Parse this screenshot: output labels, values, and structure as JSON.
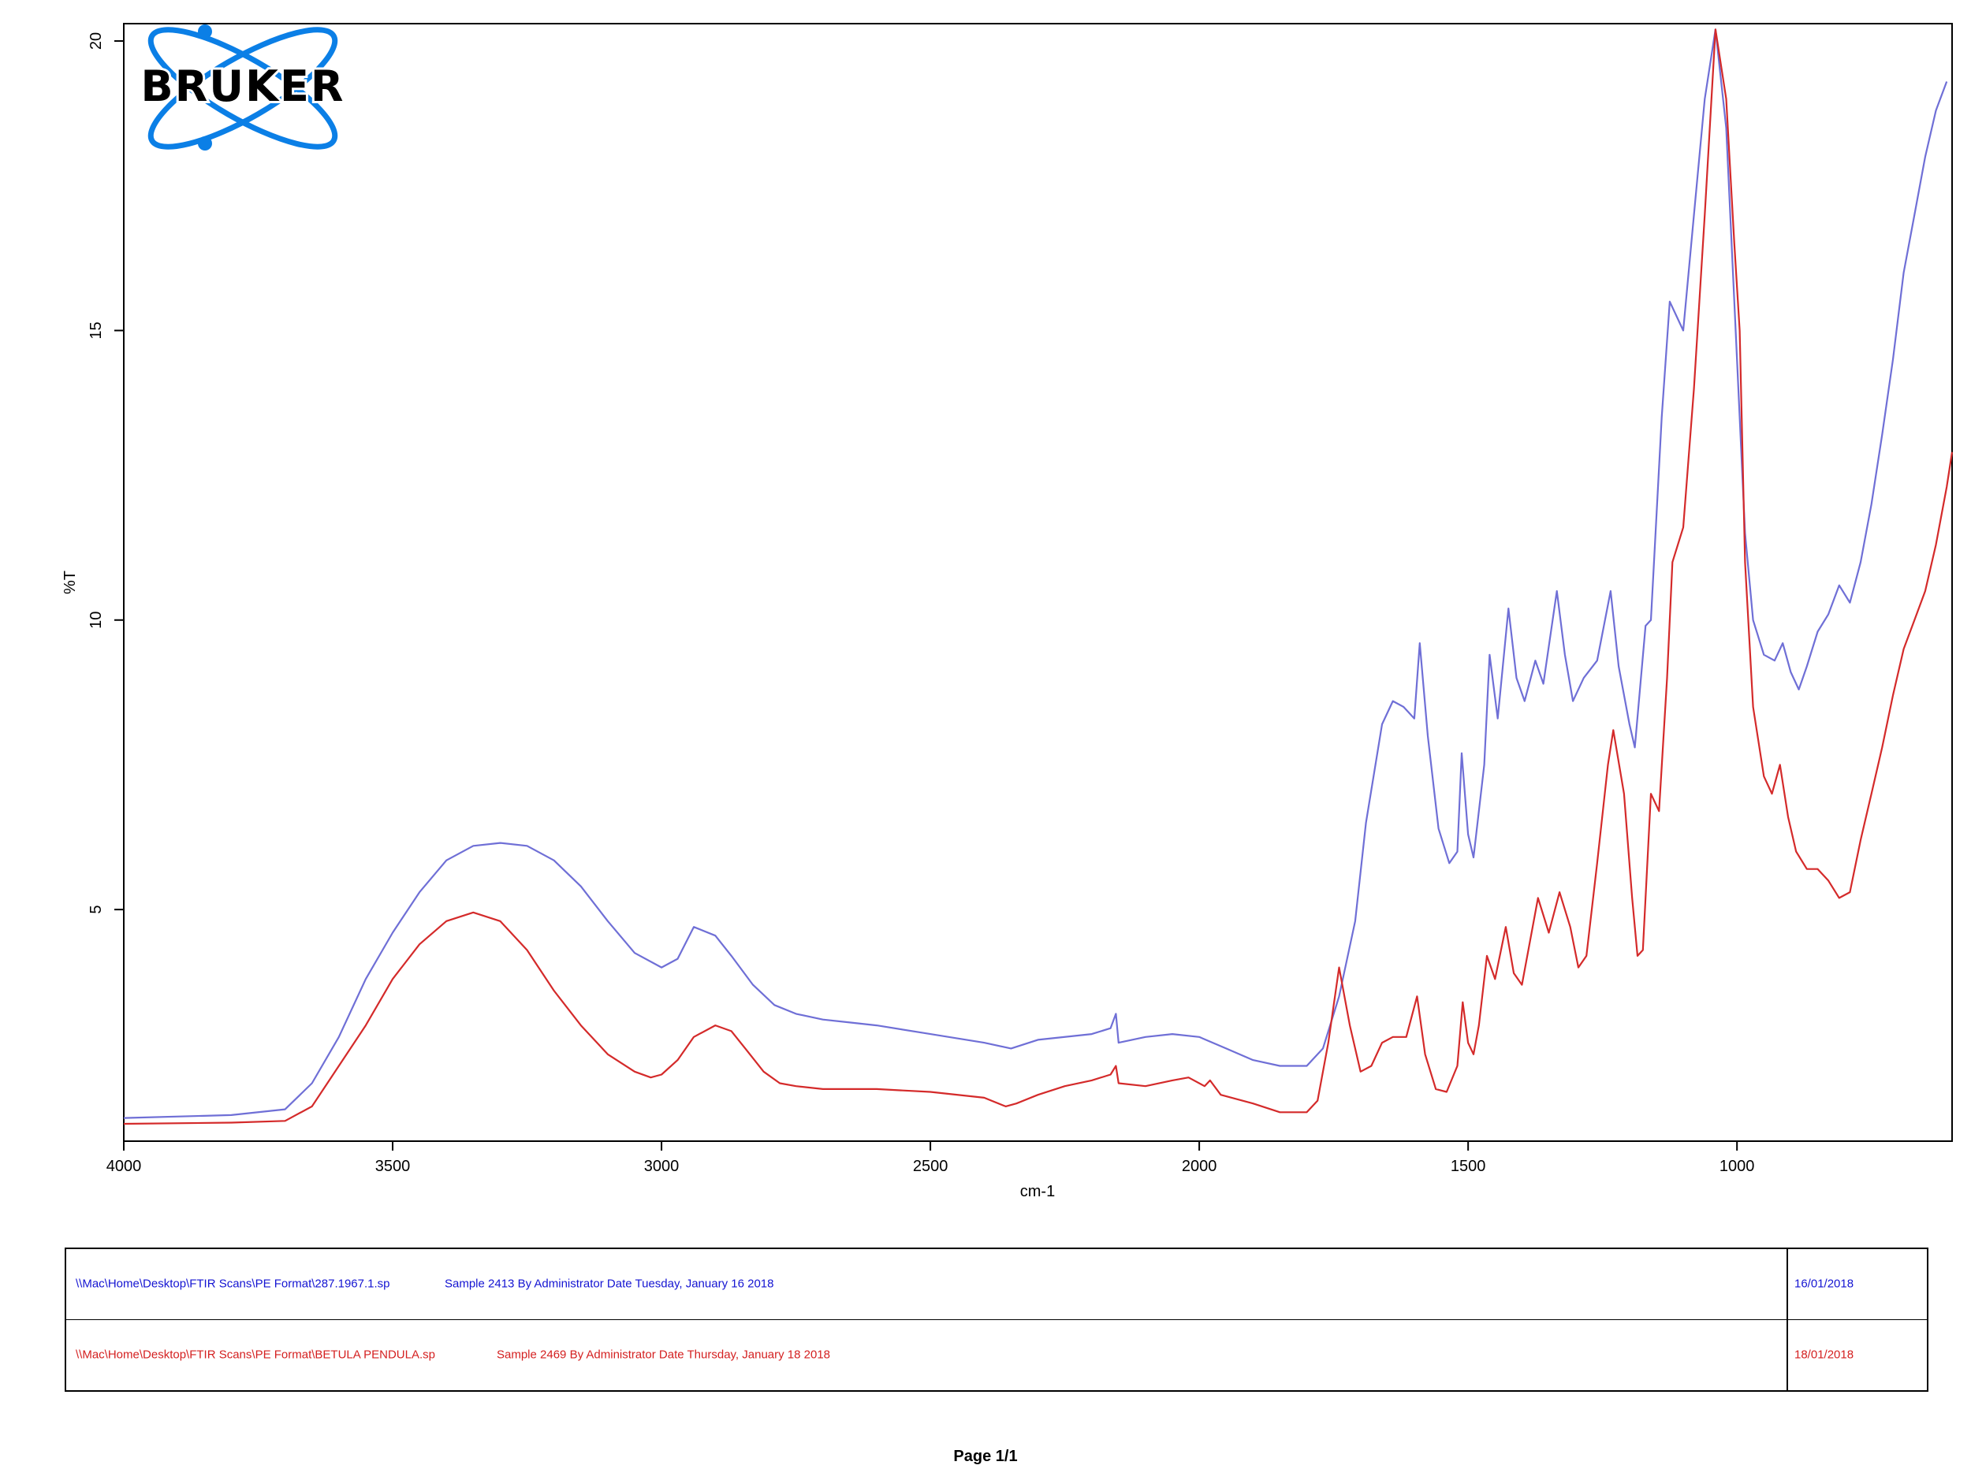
{
  "logo": {
    "text": "BRUKER",
    "color": "#0b7fe6"
  },
  "chart_data": {
    "type": "line",
    "xlabel": "cm-1",
    "ylabel": "%T",
    "xlim": [
      4000,
      600
    ],
    "ylim": [
      1.0,
      20.3
    ],
    "x_reversed": true,
    "x_ticks": [
      4000,
      3500,
      3000,
      2500,
      2000,
      1500,
      1000
    ],
    "y_ticks": [
      5,
      10,
      15,
      20
    ],
    "grid": false,
    "series": [
      {
        "color": "#6f6fd6",
        "points": [
          [
            4000,
            1.4
          ],
          [
            3800,
            1.45
          ],
          [
            3700,
            1.55
          ],
          [
            3650,
            2.0
          ],
          [
            3600,
            2.8
          ],
          [
            3550,
            3.8
          ],
          [
            3500,
            4.6
          ],
          [
            3450,
            5.3
          ],
          [
            3400,
            5.85
          ],
          [
            3350,
            6.1
          ],
          [
            3300,
            6.15
          ],
          [
            3250,
            6.1
          ],
          [
            3200,
            5.85
          ],
          [
            3150,
            5.4
          ],
          [
            3100,
            4.8
          ],
          [
            3050,
            4.25
          ],
          [
            3000,
            4.0
          ],
          [
            2970,
            4.15
          ],
          [
            2940,
            4.7
          ],
          [
            2900,
            4.55
          ],
          [
            2870,
            4.2
          ],
          [
            2830,
            3.7
          ],
          [
            2790,
            3.35
          ],
          [
            2750,
            3.2
          ],
          [
            2700,
            3.1
          ],
          [
            2650,
            3.05
          ],
          [
            2600,
            3.0
          ],
          [
            2500,
            2.85
          ],
          [
            2400,
            2.7
          ],
          [
            2350,
            2.6
          ],
          [
            2300,
            2.75
          ],
          [
            2200,
            2.85
          ],
          [
            2165,
            2.95
          ],
          [
            2155,
            3.2
          ],
          [
            2150,
            2.7
          ],
          [
            2100,
            2.8
          ],
          [
            2050,
            2.85
          ],
          [
            2000,
            2.8
          ],
          [
            1950,
            2.6
          ],
          [
            1900,
            2.4
          ],
          [
            1850,
            2.3
          ],
          [
            1800,
            2.3
          ],
          [
            1770,
            2.6
          ],
          [
            1740,
            3.5
          ],
          [
            1710,
            4.8
          ],
          [
            1690,
            6.5
          ],
          [
            1660,
            8.2
          ],
          [
            1640,
            8.6
          ],
          [
            1620,
            8.5
          ],
          [
            1600,
            8.3
          ],
          [
            1590,
            9.6
          ],
          [
            1575,
            8.0
          ],
          [
            1555,
            6.4
          ],
          [
            1535,
            5.8
          ],
          [
            1520,
            6.0
          ],
          [
            1512,
            7.7
          ],
          [
            1500,
            6.3
          ],
          [
            1490,
            5.9
          ],
          [
            1470,
            7.5
          ],
          [
            1460,
            9.4
          ],
          [
            1445,
            8.3
          ],
          [
            1425,
            10.2
          ],
          [
            1410,
            9.0
          ],
          [
            1395,
            8.6
          ],
          [
            1375,
            9.3
          ],
          [
            1360,
            8.9
          ],
          [
            1335,
            10.5
          ],
          [
            1320,
            9.4
          ],
          [
            1305,
            8.6
          ],
          [
            1285,
            9.0
          ],
          [
            1260,
            9.3
          ],
          [
            1235,
            10.5
          ],
          [
            1220,
            9.2
          ],
          [
            1200,
            8.2
          ],
          [
            1190,
            7.8
          ],
          [
            1170,
            9.9
          ],
          [
            1160,
            10.0
          ],
          [
            1140,
            13.5
          ],
          [
            1125,
            15.5
          ],
          [
            1100,
            15.0
          ],
          [
            1080,
            17.0
          ],
          [
            1060,
            19.0
          ],
          [
            1040,
            20.2
          ],
          [
            1020,
            18.5
          ],
          [
            1000,
            14.5
          ],
          [
            985,
            11.5
          ],
          [
            970,
            10.0
          ],
          [
            950,
            9.4
          ],
          [
            930,
            9.3
          ],
          [
            915,
            9.6
          ],
          [
            900,
            9.1
          ],
          [
            885,
            8.8
          ],
          [
            870,
            9.2
          ],
          [
            850,
            9.8
          ],
          [
            830,
            10.1
          ],
          [
            810,
            10.6
          ],
          [
            790,
            10.3
          ],
          [
            770,
            11.0
          ],
          [
            750,
            12.0
          ],
          [
            730,
            13.2
          ],
          [
            710,
            14.5
          ],
          [
            690,
            16.0
          ],
          [
            670,
            17.0
          ],
          [
            650,
            18.0
          ],
          [
            630,
            18.8
          ],
          [
            610,
            19.3
          ]
        ]
      },
      {
        "color": "#d42a2a",
        "points": [
          [
            4000,
            1.3
          ],
          [
            3800,
            1.32
          ],
          [
            3700,
            1.35
          ],
          [
            3650,
            1.6
          ],
          [
            3600,
            2.3
          ],
          [
            3550,
            3.0
          ],
          [
            3500,
            3.8
          ],
          [
            3450,
            4.4
          ],
          [
            3400,
            4.8
          ],
          [
            3350,
            4.95
          ],
          [
            3300,
            4.8
          ],
          [
            3250,
            4.3
          ],
          [
            3200,
            3.6
          ],
          [
            3150,
            3.0
          ],
          [
            3100,
            2.5
          ],
          [
            3050,
            2.2
          ],
          [
            3020,
            2.1
          ],
          [
            3000,
            2.15
          ],
          [
            2970,
            2.4
          ],
          [
            2940,
            2.8
          ],
          [
            2900,
            3.0
          ],
          [
            2870,
            2.9
          ],
          [
            2840,
            2.55
          ],
          [
            2810,
            2.2
          ],
          [
            2780,
            2.0
          ],
          [
            2750,
            1.95
          ],
          [
            2700,
            1.9
          ],
          [
            2600,
            1.9
          ],
          [
            2500,
            1.85
          ],
          [
            2400,
            1.75
          ],
          [
            2360,
            1.6
          ],
          [
            2340,
            1.65
          ],
          [
            2300,
            1.8
          ],
          [
            2250,
            1.95
          ],
          [
            2200,
            2.05
          ],
          [
            2165,
            2.15
          ],
          [
            2155,
            2.3
          ],
          [
            2150,
            2.0
          ],
          [
            2100,
            1.95
          ],
          [
            2050,
            2.05
          ],
          [
            2020,
            2.1
          ],
          [
            1990,
            1.95
          ],
          [
            1980,
            2.05
          ],
          [
            1960,
            1.8
          ],
          [
            1900,
            1.65
          ],
          [
            1850,
            1.5
          ],
          [
            1800,
            1.5
          ],
          [
            1780,
            1.7
          ],
          [
            1760,
            2.7
          ],
          [
            1740,
            4.0
          ],
          [
            1720,
            3.0
          ],
          [
            1700,
            2.2
          ],
          [
            1680,
            2.3
          ],
          [
            1660,
            2.7
          ],
          [
            1640,
            2.8
          ],
          [
            1615,
            2.8
          ],
          [
            1595,
            3.5
          ],
          [
            1580,
            2.5
          ],
          [
            1560,
            1.9
          ],
          [
            1540,
            1.85
          ],
          [
            1520,
            2.3
          ],
          [
            1510,
            3.4
          ],
          [
            1500,
            2.7
          ],
          [
            1490,
            2.5
          ],
          [
            1480,
            3.0
          ],
          [
            1465,
            4.2
          ],
          [
            1450,
            3.8
          ],
          [
            1430,
            4.7
          ],
          [
            1415,
            3.9
          ],
          [
            1400,
            3.7
          ],
          [
            1380,
            4.7
          ],
          [
            1370,
            5.2
          ],
          [
            1350,
            4.6
          ],
          [
            1330,
            5.3
          ],
          [
            1310,
            4.7
          ],
          [
            1295,
            4.0
          ],
          [
            1280,
            4.2
          ],
          [
            1260,
            5.8
          ],
          [
            1240,
            7.5
          ],
          [
            1230,
            8.1
          ],
          [
            1210,
            7.0
          ],
          [
            1195,
            5.2
          ],
          [
            1185,
            4.2
          ],
          [
            1175,
            4.3
          ],
          [
            1160,
            7.0
          ],
          [
            1145,
            6.7
          ],
          [
            1130,
            9.0
          ],
          [
            1120,
            11.0
          ],
          [
            1100,
            11.6
          ],
          [
            1080,
            14.0
          ],
          [
            1060,
            17.0
          ],
          [
            1040,
            20.2
          ],
          [
            1020,
            19.0
          ],
          [
            1005,
            16.5
          ],
          [
            995,
            15.0
          ],
          [
            985,
            11.0
          ],
          [
            970,
            8.5
          ],
          [
            950,
            7.3
          ],
          [
            935,
            7.0
          ],
          [
            920,
            7.5
          ],
          [
            905,
            6.6
          ],
          [
            890,
            6.0
          ],
          [
            870,
            5.7
          ],
          [
            850,
            5.7
          ],
          [
            830,
            5.5
          ],
          [
            810,
            5.2
          ],
          [
            790,
            5.3
          ],
          [
            770,
            6.2
          ],
          [
            750,
            7.0
          ],
          [
            730,
            7.8
          ],
          [
            710,
            8.7
          ],
          [
            690,
            9.5
          ],
          [
            670,
            10.0
          ],
          [
            650,
            10.5
          ],
          [
            630,
            11.3
          ],
          [
            610,
            12.3
          ],
          [
            600,
            12.9
          ]
        ]
      }
    ]
  },
  "legend": {
    "rows": [
      {
        "path": "\\\\Mac\\Home\\Desktop\\FTIR Scans\\PE Format\\287.1967.1.sp",
        "description": "Sample 2413 By Administrator Date Tuesday, January 16 2018",
        "date": "16/01/2018",
        "color": "#1414d2"
      },
      {
        "path": "\\\\Mac\\Home\\Desktop\\FTIR Scans\\PE Format\\BETULA PENDULA.sp",
        "description": "Sample 2469 By Administrator Date Thursday, January 18 2018",
        "date": "18/01/2018",
        "color": "#d42020"
      }
    ]
  },
  "footer": {
    "page": "Page 1/1"
  }
}
